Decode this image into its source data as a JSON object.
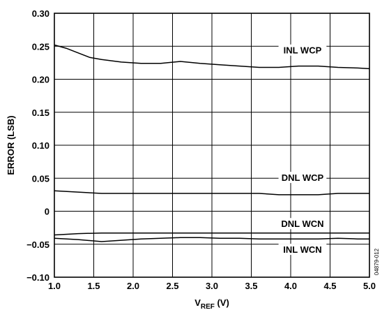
{
  "chart_data": {
    "type": "line",
    "xlabel": {
      "base": "V",
      "subscript": "REF",
      "suffix": " (V)"
    },
    "ylabel": "ERROR (LSB)",
    "xlim": [
      1.0,
      5.0
    ],
    "ylim": [
      -0.1,
      0.3
    ],
    "x_ticks": [
      1.0,
      1.5,
      2.0,
      2.5,
      3.0,
      3.5,
      4.0,
      4.5,
      5.0
    ],
    "x_tick_labels": [
      "1.0",
      "1.5",
      "2.0",
      "2.5",
      "3.0",
      "3.5",
      "4.0",
      "4.5",
      "5.0"
    ],
    "y_ticks": [
      -0.1,
      -0.05,
      0,
      0.05,
      0.1,
      0.15,
      0.2,
      0.25,
      0.3
    ],
    "y_tick_labels": [
      "−0.10",
      "−0.05",
      "0",
      "0.05",
      "0.10",
      "0.15",
      "0.20",
      "0.25",
      "0.30"
    ],
    "grid": true,
    "figure_code": "04879-012",
    "series": [
      {
        "name": "INL WCP",
        "label_at": [
          4.15,
          0.24
        ],
        "x": [
          1.0,
          1.15,
          1.3,
          1.45,
          1.6,
          1.85,
          2.1,
          2.35,
          2.6,
          2.85,
          3.1,
          3.35,
          3.6,
          3.85,
          4.1,
          4.35,
          4.6,
          4.85,
          5.0
        ],
        "y": [
          0.252,
          0.247,
          0.24,
          0.233,
          0.23,
          0.226,
          0.224,
          0.224,
          0.227,
          0.224,
          0.222,
          0.22,
          0.218,
          0.218,
          0.22,
          0.22,
          0.218,
          0.217,
          0.216
        ]
      },
      {
        "name": "DNL WCP",
        "label_at": [
          4.15,
          0.047
        ],
        "x": [
          1.0,
          1.3,
          1.6,
          2.1,
          2.6,
          3.1,
          3.6,
          3.85,
          4.35,
          4.6,
          5.0
        ],
        "y": [
          0.031,
          0.029,
          0.027,
          0.027,
          0.027,
          0.027,
          0.027,
          0.025,
          0.025,
          0.027,
          0.027
        ]
      },
      {
        "name": "DNL WCN",
        "label_at": [
          4.15,
          -0.023
        ],
        "x": [
          1.0,
          1.3,
          1.6,
          2.1,
          2.6,
          3.1,
          3.6,
          4.1,
          4.6,
          5.0
        ],
        "y": [
          -0.036,
          -0.034,
          -0.033,
          -0.033,
          -0.033,
          -0.033,
          -0.033,
          -0.033,
          -0.033,
          -0.033
        ]
      },
      {
        "name": "INL WCN",
        "label_at": [
          4.15,
          -0.062
        ],
        "x": [
          1.0,
          1.3,
          1.6,
          1.85,
          2.1,
          2.35,
          2.6,
          2.85,
          3.1,
          3.35,
          3.6,
          3.85,
          4.1,
          4.35,
          4.6,
          4.85,
          5.0
        ],
        "y": [
          -0.041,
          -0.043,
          -0.046,
          -0.044,
          -0.042,
          -0.041,
          -0.04,
          -0.04,
          -0.041,
          -0.041,
          -0.042,
          -0.042,
          -0.042,
          -0.042,
          -0.041,
          -0.042,
          -0.042
        ]
      }
    ]
  }
}
